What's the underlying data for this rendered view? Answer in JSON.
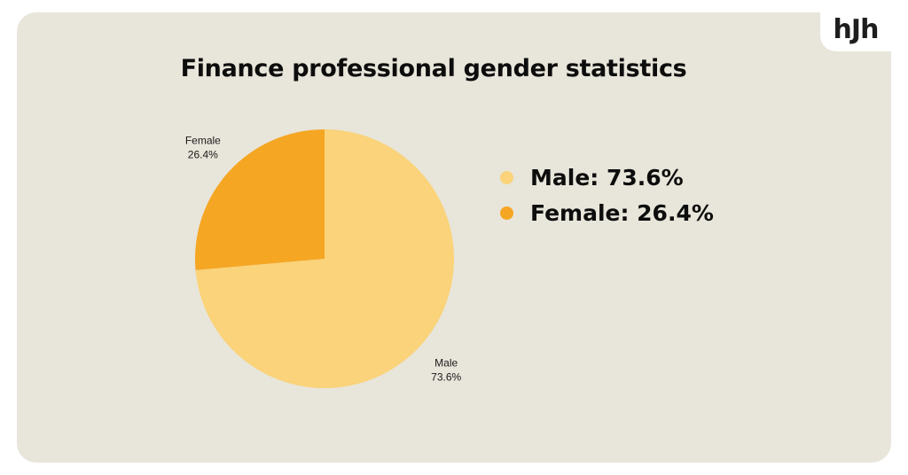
{
  "brand": {
    "logo_text": "hJh"
  },
  "chart_data": {
    "type": "pie",
    "title": "Finance professional gender statistics",
    "categories": [
      "Male",
      "Female"
    ],
    "values": [
      73.6,
      26.4
    ],
    "data_labels": [
      "73.6%",
      "26.4%"
    ],
    "colors": [
      "#fad37a",
      "#f5a623"
    ],
    "legend": {
      "placement": "right",
      "entries": [
        "Male: 73.6%",
        "Female: 26.4%"
      ]
    }
  },
  "colors": {
    "background": "#e8e5da",
    "text": "#0d0d0d"
  }
}
